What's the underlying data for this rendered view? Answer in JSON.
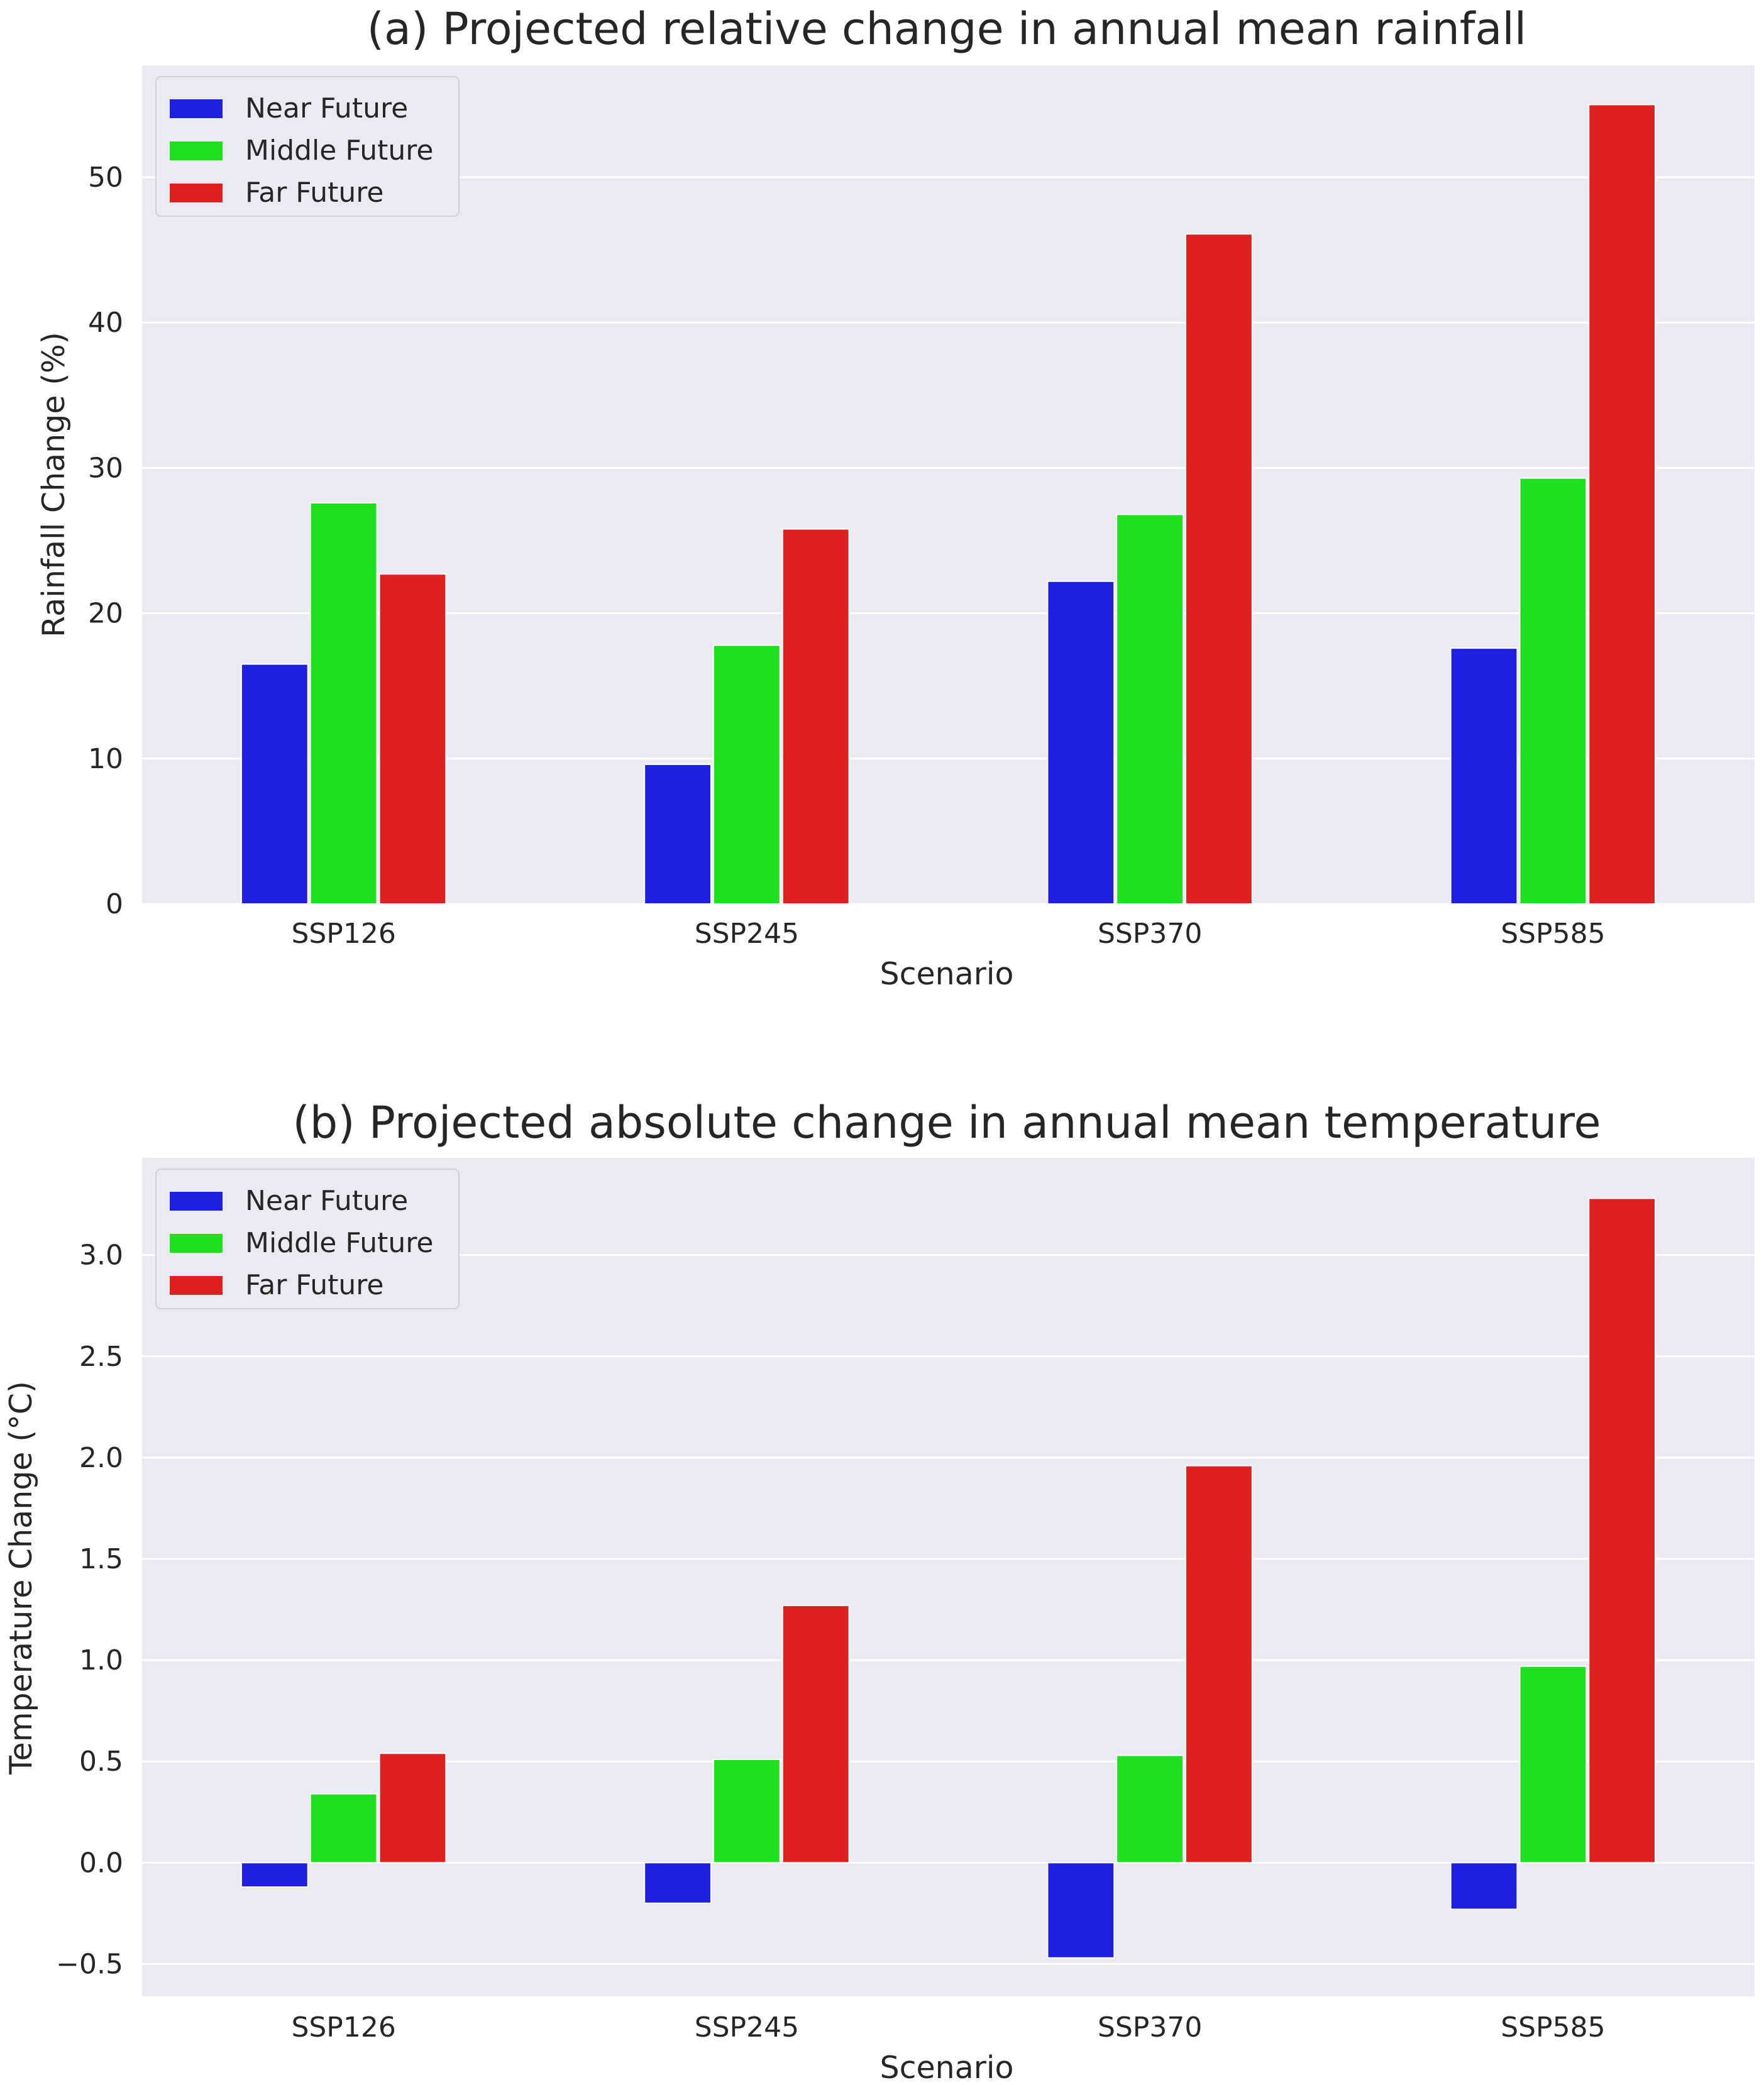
{
  "chart_data": [
    {
      "type": "bar",
      "title": "(a) Projected relative change in annual mean rainfall",
      "xlabel": "Scenario",
      "ylabel": "Rainfall Change (%)",
      "categories": [
        "SSP126",
        "SSP245",
        "SSP370",
        "SSP585"
      ],
      "ylim": [
        0,
        57.7
      ],
      "yticks": [
        0,
        10,
        20,
        30,
        40,
        50
      ],
      "ytick_labels": [
        "0",
        "10",
        "20",
        "30",
        "40",
        "50"
      ],
      "legend": {
        "position": "top-left"
      },
      "grid": true,
      "series": [
        {
          "name": "Near Future",
          "color": "#1f1fe0",
          "values": [
            16.5,
            9.6,
            22.2,
            17.6
          ]
        },
        {
          "name": "Middle Future",
          "color": "#1fe01f",
          "values": [
            27.6,
            17.8,
            26.8,
            29.3
          ]
        },
        {
          "name": "Far Future",
          "color": "#de2020",
          "values": [
            22.7,
            25.8,
            46.1,
            55.0
          ]
        }
      ]
    },
    {
      "type": "bar",
      "title": "(b) Projected absolute change in annual mean temperature",
      "xlabel": "Scenario",
      "ylabel": "Temperature Change (°C)",
      "categories": [
        "SSP126",
        "SSP245",
        "SSP370",
        "SSP585"
      ],
      "ylim": [
        -0.66,
        3.48
      ],
      "yticks": [
        -0.5,
        0.0,
        0.5,
        1.0,
        1.5,
        2.0,
        2.5,
        3.0
      ],
      "ytick_labels": [
        "−0.5",
        "0.0",
        "0.5",
        "1.0",
        "1.5",
        "2.0",
        "2.5",
        "3.0"
      ],
      "legend": {
        "position": "top-left"
      },
      "grid": true,
      "series": [
        {
          "name": "Near Future",
          "color": "#1f1fe0",
          "values": [
            -0.12,
            -0.2,
            -0.47,
            -0.23
          ]
        },
        {
          "name": "Middle Future",
          "color": "#1fe01f",
          "values": [
            0.34,
            0.51,
            0.53,
            0.97
          ]
        },
        {
          "name": "Far Future",
          "color": "#de2020",
          "values": [
            0.54,
            1.27,
            1.96,
            3.28
          ]
        }
      ]
    }
  ]
}
